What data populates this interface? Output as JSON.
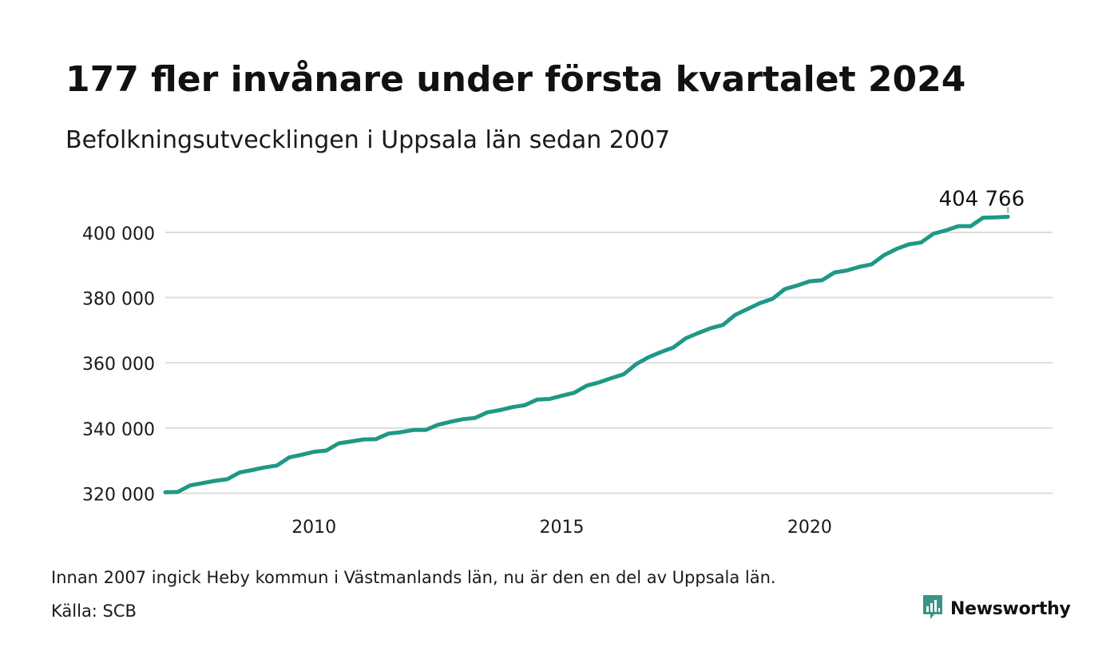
{
  "title": "177 fler invånare under första kvartalet 2024",
  "subtitle": "Befolkningsutvecklingen i Uppsala län sedan 2007",
  "footnote": "Innan 2007 ingick Heby kommun i Västmanlands län, nu är den en del av Uppsala län.",
  "source": "Källa: SCB",
  "brand": {
    "name": "Newsworthy",
    "icon": "newsworthy-logo-icon",
    "color": "#3a9488"
  },
  "colors": {
    "line": "#1f9886",
    "grid": "#dddddd",
    "text": "#1a1a1a"
  },
  "chart_data": {
    "type": "line",
    "xlabel": "",
    "ylabel": "",
    "xlim": [
      2007,
      2024.9
    ],
    "ylim": [
      314000,
      410000
    ],
    "x_ticks": [
      2010,
      2015,
      2020
    ],
    "x_tick_labels": [
      "2010",
      "2015",
      "2020"
    ],
    "y_ticks": [
      320000,
      340000,
      360000,
      380000,
      400000
    ],
    "y_tick_labels": [
      "320 000",
      "340 000",
      "360 000",
      "380 000",
      "400 000"
    ],
    "grid": true,
    "end_label": "404 766",
    "series": [
      {
        "x": [
          2007.0,
          2007.25,
          2007.5,
          2007.75,
          2008.0,
          2008.25,
          2008.5,
          2008.75,
          2009.0,
          2009.25,
          2009.5,
          2009.75,
          2010.0,
          2010.25,
          2010.5,
          2010.75,
          2011.0,
          2011.25,
          2011.5,
          2011.75,
          2012.0,
          2012.25,
          2012.5,
          2012.75,
          2013.0,
          2013.25,
          2013.5,
          2013.75,
          2014.0,
          2014.25,
          2014.5,
          2014.75,
          2015.0,
          2015.25,
          2015.5,
          2015.75,
          2016.0,
          2016.25,
          2016.5,
          2016.75,
          2017.0,
          2017.25,
          2017.5,
          2017.75,
          2018.0,
          2018.25,
          2018.5,
          2018.75,
          2019.0,
          2019.25,
          2019.5,
          2019.75,
          2020.0,
          2020.25,
          2020.5,
          2020.75,
          2021.0,
          2021.25,
          2021.5,
          2021.75,
          2022.0,
          2022.25,
          2022.5,
          2022.75,
          2023.0,
          2023.25,
          2023.5,
          2023.75,
          2024.0
        ],
        "y": [
          320300,
          320400,
          322400,
          323100,
          323800,
          324300,
          326400,
          327100,
          327900,
          328500,
          331000,
          331800,
          332700,
          333100,
          335300,
          335900,
          336500,
          336600,
          338300,
          338700,
          339400,
          339400,
          341000,
          341900,
          342700,
          343100,
          344800,
          345500,
          346400,
          347000,
          348700,
          348900,
          349900,
          350800,
          353000,
          354000,
          355300,
          356500,
          359600,
          361700,
          363300,
          364700,
          367500,
          369100,
          370600,
          371600,
          374700,
          376500,
          378300,
          379600,
          382600,
          383700,
          385000,
          385300,
          387700,
          388300,
          389400,
          390200,
          393000,
          394900,
          396300,
          396900,
          399600,
          400600,
          401900,
          401900,
          404500,
          404589,
          404766
        ]
      }
    ]
  }
}
